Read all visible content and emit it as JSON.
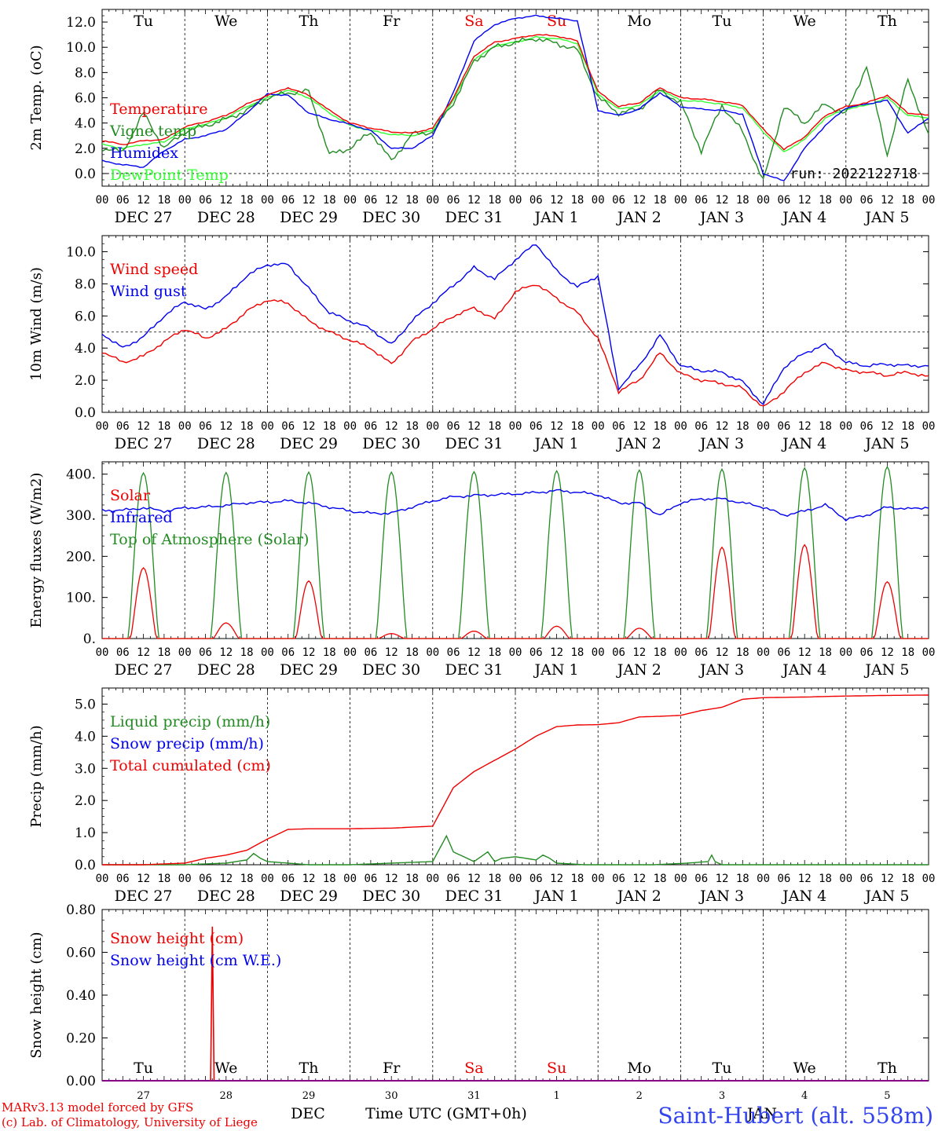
{
  "run_label": "run: 2022122718",
  "credit_line1": "MARv3.13 model forced by GFS",
  "credit_line2": "(c) Lab. of Climatology, University of Liege",
  "station_label": "Saint-Hubert (alt. 558m)",
  "bottom_month_label": "DEC",
  "bottom_month_label2": "JAN",
  "bottom_time_label": "Time UTC (GMT+0h)",
  "weekdays": [
    "Tu",
    "We",
    "Th",
    "Fr",
    "Sa",
    "Su",
    "Mo",
    "Tu",
    "We",
    "Th"
  ],
  "weekend_days": [
    "Sa",
    "Su"
  ],
  "day_numbers": [
    "27",
    "28",
    "29",
    "30",
    "31",
    "1",
    "2",
    "3",
    "4",
    "5"
  ],
  "date_labels": [
    "DEC 27",
    "DEC 28",
    "DEC 29",
    "DEC 30",
    "DEC 31",
    "JAN  1",
    "JAN  2",
    "JAN  3",
    "JAN  4",
    "JAN  5"
  ],
  "hour_labels": [
    "00",
    "06",
    "12",
    "18"
  ],
  "colors": {
    "red": "#ee0000",
    "green": "#228b22",
    "blue": "#0000ee",
    "lime": "#33ff33",
    "purple": "#880088"
  },
  "chart_data": [
    {
      "type": "line",
      "ylabel": "2m Temp. (oC)",
      "ylim": [
        -1,
        13
      ],
      "yticks": [
        "0.0",
        "2.0",
        "4.0",
        "6.0",
        "8.0",
        "10.0",
        "12.0"
      ],
      "xlim_hours": [
        0,
        240
      ],
      "reference_line": 0,
      "legend": [
        "Temperature",
        "Vigne temp",
        "Humidex",
        "DewPoint Temp"
      ],
      "series": [
        {
          "name": "Temperature",
          "color": "red",
          "x": [
            0,
            6,
            12,
            18,
            24,
            30,
            36,
            42,
            48,
            54,
            60,
            66,
            72,
            78,
            84,
            90,
            96,
            102,
            108,
            114,
            120,
            126,
            132,
            138,
            144,
            150,
            156,
            162,
            168,
            174,
            180,
            186,
            192,
            198,
            204,
            210,
            216,
            222,
            228,
            234,
            240
          ],
          "values": [
            2.6,
            2.3,
            2.6,
            2.7,
            3.7,
            4.1,
            4.6,
            5.5,
            6.2,
            6.8,
            6.2,
            5.0,
            4.0,
            3.6,
            3.3,
            3.2,
            3.6,
            6.0,
            9.3,
            10.4,
            10.7,
            11.0,
            10.9,
            10.5,
            6.5,
            5.3,
            5.6,
            6.8,
            6.0,
            5.9,
            5.7,
            5.4,
            3.5,
            1.9,
            2.9,
            4.6,
            5.3,
            5.6,
            6.2,
            4.8,
            4.6
          ]
        },
        {
          "name": "Vigne temp",
          "color": "green",
          "x": [
            0,
            6,
            12,
            18,
            24,
            30,
            36,
            42,
            48,
            54,
            60,
            66,
            72,
            78,
            84,
            90,
            96,
            102,
            108,
            114,
            120,
            126,
            132,
            138,
            144,
            150,
            156,
            162,
            168,
            174,
            180,
            186,
            192,
            198,
            204,
            210,
            216,
            222,
            228,
            234,
            240
          ],
          "values": [
            2.0,
            1.7,
            4.8,
            2.0,
            3.3,
            3.8,
            4.3,
            5.0,
            6.0,
            6.4,
            6.5,
            1.5,
            2.0,
            3.3,
            1.0,
            3.1,
            3.3,
            5.6,
            8.9,
            10.0,
            10.4,
            10.7,
            10.3,
            9.8,
            6.0,
            4.8,
            5.1,
            6.6,
            5.6,
            1.8,
            5.4,
            3.3,
            -0.6,
            5.3,
            4.0,
            5.5,
            4.7,
            8.5,
            1.5,
            7.5,
            3.0
          ]
        },
        {
          "name": "Humidex",
          "color": "blue",
          "x": [
            0,
            6,
            12,
            18,
            24,
            30,
            36,
            42,
            48,
            54,
            60,
            66,
            72,
            78,
            84,
            90,
            96,
            102,
            108,
            114,
            120,
            126,
            132,
            138,
            144,
            150,
            156,
            162,
            168,
            174,
            180,
            186,
            192,
            198,
            204,
            210,
            216,
            222,
            228,
            234,
            240
          ],
          "values": [
            1.0,
            0.7,
            0.5,
            1.8,
            2.7,
            3.0,
            3.5,
            4.8,
            6.3,
            6.2,
            4.8,
            4.3,
            3.9,
            3.4,
            2.0,
            2.0,
            3.0,
            6.4,
            10.5,
            11.8,
            12.3,
            12.5,
            12.3,
            12.1,
            5.0,
            4.6,
            5.1,
            6.4,
            5.3,
            5.1,
            5.0,
            4.7,
            0.0,
            -0.6,
            2.0,
            3.8,
            5.2,
            5.5,
            5.8,
            3.2,
            4.4
          ]
        },
        {
          "name": "DewPoint Temp",
          "color": "lime",
          "x": [
            0,
            6,
            12,
            18,
            24,
            30,
            36,
            42,
            48,
            54,
            60,
            66,
            72,
            78,
            84,
            90,
            96,
            102,
            108,
            114,
            120,
            126,
            132,
            138,
            144,
            150,
            156,
            162,
            168,
            174,
            180,
            186,
            192,
            198,
            204,
            210,
            216,
            222,
            228,
            234,
            240
          ],
          "values": [
            2.3,
            2.0,
            2.3,
            2.5,
            3.5,
            3.9,
            4.4,
            5.3,
            6.0,
            6.6,
            6.0,
            4.8,
            3.8,
            3.4,
            3.1,
            3.0,
            3.4,
            5.8,
            9.0,
            10.1,
            10.4,
            10.8,
            10.7,
            10.3,
            6.3,
            5.1,
            5.4,
            6.6,
            5.8,
            5.7,
            5.5,
            5.2,
            3.3,
            1.7,
            2.7,
            4.4,
            5.1,
            5.4,
            6.0,
            4.6,
            4.4
          ]
        }
      ]
    },
    {
      "type": "line",
      "ylabel": "10m Wind (m/s)",
      "ylim": [
        0,
        11
      ],
      "yticks": [
        "0.0",
        "2.0",
        "4.0",
        "6.0",
        "8.0",
        "10.0"
      ],
      "xlim_hours": [
        0,
        240
      ],
      "reference_line": 5,
      "legend": [
        "Wind speed",
        "Wind gust"
      ],
      "series": [
        {
          "name": "Wind speed",
          "color": "red",
          "x": [
            0,
            6,
            12,
            18,
            24,
            30,
            36,
            42,
            48,
            54,
            60,
            66,
            72,
            78,
            84,
            90,
            96,
            102,
            108,
            114,
            120,
            126,
            132,
            138,
            144,
            150,
            156,
            162,
            168,
            174,
            180,
            186,
            192,
            198,
            204,
            210,
            216,
            222,
            228,
            234,
            240
          ],
          "values": [
            3.8,
            3.1,
            3.5,
            4.4,
            5.2,
            4.6,
            5.2,
            6.3,
            7.0,
            6.8,
            5.7,
            5.0,
            4.5,
            4.0,
            3.0,
            4.4,
            5.2,
            6.0,
            6.5,
            5.8,
            7.5,
            8.0,
            7.1,
            6.2,
            4.6,
            1.3,
            2.0,
            3.7,
            2.4,
            2.0,
            1.8,
            1.5,
            0.3,
            1.3,
            2.5,
            3.1,
            2.6,
            2.5,
            2.3,
            2.5,
            2.2
          ]
        },
        {
          "name": "Wind gust",
          "color": "blue",
          "x": [
            0,
            6,
            12,
            18,
            24,
            30,
            36,
            42,
            48,
            54,
            60,
            66,
            72,
            78,
            84,
            90,
            96,
            102,
            108,
            114,
            120,
            126,
            132,
            138,
            144,
            150,
            156,
            162,
            168,
            174,
            180,
            186,
            192,
            198,
            204,
            210,
            216,
            222,
            228,
            234,
            240
          ],
          "values": [
            4.9,
            4.0,
            4.7,
            6.0,
            6.9,
            6.4,
            7.2,
            8.5,
            9.2,
            9.2,
            7.7,
            6.2,
            5.7,
            5.2,
            4.2,
            5.7,
            6.8,
            7.9,
            9.0,
            8.3,
            9.5,
            10.5,
            8.8,
            7.8,
            8.5,
            1.5,
            2.9,
            4.8,
            2.9,
            2.6,
            2.5,
            1.9,
            0.5,
            2.8,
            3.7,
            4.2,
            3.1,
            2.9,
            3.0,
            2.9,
            2.9
          ]
        }
      ]
    },
    {
      "type": "line",
      "ylabel": "Energy fluxes (W/m2)",
      "ylim": [
        0,
        430
      ],
      "yticks": [
        "0.",
        "100.",
        "200.",
        "300.",
        "400."
      ],
      "xlim_hours": [
        0,
        240
      ],
      "legend": [
        "Solar",
        "Infrared",
        "Top of Atmosphere (Solar)"
      ],
      "series": [
        {
          "name": "Solar",
          "color": "red",
          "peaks": [
            172,
            38,
            140,
            12,
            18,
            30,
            25,
            222,
            228,
            138
          ]
        },
        {
          "name": "Infrared",
          "color": "blue",
          "x": [
            0,
            6,
            12,
            18,
            24,
            30,
            36,
            42,
            48,
            54,
            60,
            66,
            72,
            78,
            84,
            90,
            96,
            102,
            108,
            114,
            120,
            126,
            132,
            138,
            144,
            150,
            156,
            162,
            168,
            174,
            180,
            186,
            192,
            198,
            204,
            210,
            216,
            222,
            228,
            234,
            240
          ],
          "values": [
            312,
            312,
            318,
            310,
            318,
            320,
            324,
            330,
            332,
            335,
            330,
            320,
            310,
            305,
            305,
            320,
            335,
            345,
            348,
            350,
            352,
            355,
            360,
            356,
            350,
            330,
            330,
            300,
            330,
            340,
            340,
            330,
            320,
            300,
            310,
            325,
            290,
            300,
            320,
            315,
            320
          ]
        },
        {
          "name": "Top of Atmosphere (Solar)",
          "color": "green",
          "peaks": [
            403,
            404,
            405,
            405,
            406,
            408,
            410,
            412,
            415,
            418
          ]
        }
      ]
    },
    {
      "type": "line",
      "ylabel": "Precip (mm/h)",
      "ylim": [
        0,
        5.5
      ],
      "yticks": [
        "0.0",
        "1.0",
        "2.0",
        "3.0",
        "4.0",
        "5.0"
      ],
      "xlim_hours": [
        0,
        240
      ],
      "legend": [
        "Liquid precip (mm/h)",
        "Snow precip (mm/h)",
        "Total cumulated (cm)"
      ],
      "series": [
        {
          "name": "Total cumulated (cm)",
          "color": "red",
          "x": [
            0,
            12,
            24,
            30,
            36,
            42,
            48,
            54,
            60,
            72,
            84,
            96,
            102,
            108,
            114,
            120,
            126,
            132,
            138,
            144,
            150,
            156,
            162,
            168,
            174,
            180,
            186,
            192,
            204,
            216,
            228,
            240
          ],
          "values": [
            0,
            0.0,
            0.05,
            0.2,
            0.3,
            0.45,
            0.8,
            1.1,
            1.12,
            1.12,
            1.14,
            1.2,
            2.4,
            2.9,
            3.25,
            3.6,
            4.0,
            4.3,
            4.35,
            4.36,
            4.42,
            4.6,
            4.62,
            4.65,
            4.8,
            4.9,
            5.15,
            5.2,
            5.22,
            5.25,
            5.27,
            5.28
          ]
        },
        {
          "name": "Liquid precip (mm/h)",
          "color": "green",
          "x": [
            0,
            24,
            36,
            42,
            44,
            46,
            48,
            54,
            60,
            72,
            96,
            98,
            100,
            102,
            104,
            106,
            108,
            112,
            114,
            116,
            120,
            126,
            128,
            130,
            132,
            140,
            160,
            170,
            176,
            177,
            178,
            180,
            240
          ],
          "values": [
            0,
            0,
            0.05,
            0.15,
            0.35,
            0.2,
            0.1,
            0.05,
            0,
            0,
            0.1,
            0.5,
            0.9,
            0.4,
            0.3,
            0.2,
            0.1,
            0.4,
            0.1,
            0.2,
            0.25,
            0.15,
            0.3,
            0.2,
            0.05,
            0,
            0,
            0.05,
            0.1,
            0.3,
            0.1,
            0,
            0
          ]
        }
      ]
    },
    {
      "type": "line",
      "ylabel": "Snow height (cm)",
      "ylim": [
        0,
        0.8
      ],
      "yticks": [
        "0.00",
        "0.20",
        "0.40",
        "0.60",
        "0.80"
      ],
      "xlim_hours": [
        0,
        240
      ],
      "legend": [
        "Snow height (cm)",
        "Snow height (cm W.E.)"
      ],
      "series": [
        {
          "name": "Snow height (cm)",
          "color": "red",
          "x": [
            0,
            31.5,
            32,
            32.5,
            240
          ],
          "values": [
            0,
            0,
            0.72,
            0,
            0
          ]
        },
        {
          "name": "Snow height (cm W.E.)",
          "color": "blue",
          "x": [
            0,
            240
          ],
          "values": [
            0,
            0
          ]
        }
      ]
    }
  ]
}
